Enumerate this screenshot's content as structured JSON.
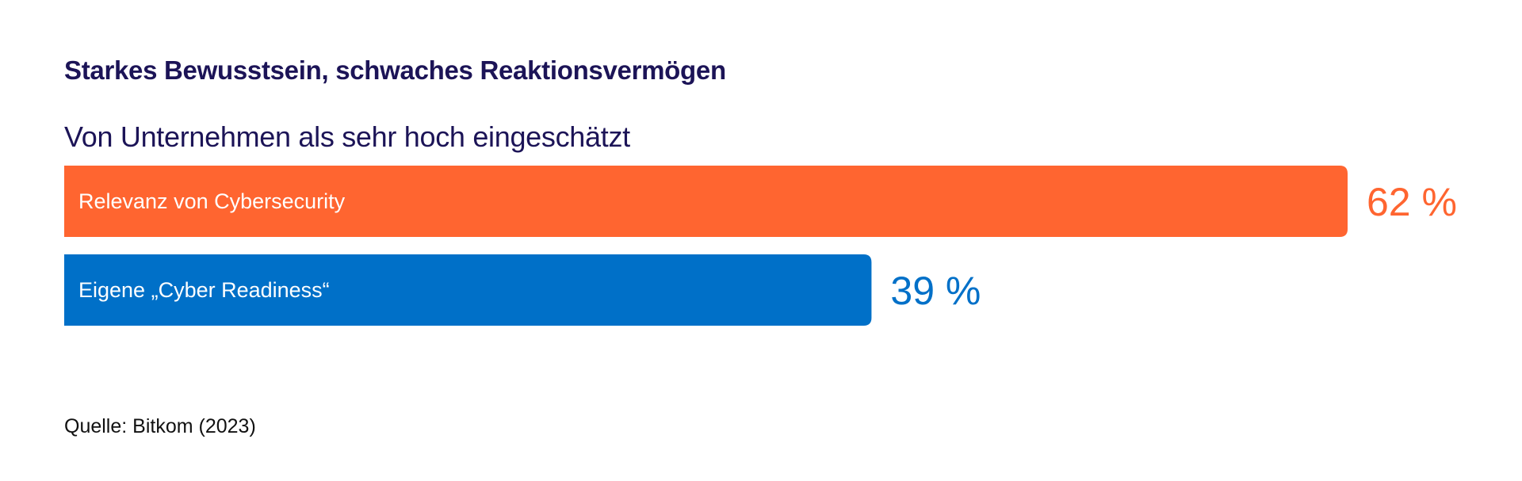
{
  "chart_data": {
    "type": "bar",
    "orientation": "horizontal",
    "title": "Starkes Bewusstsein, schwaches Reaktionsvermögen",
    "subtitle": "Von Unternehmen als sehr hoch eingeschätzt",
    "categories": [
      "Relevanz von Cybersecurity",
      "Eigene „Cyber Readiness“"
    ],
    "values": [
      62,
      39
    ],
    "value_labels": [
      "62 %",
      "39 %"
    ],
    "colors": [
      "#ff6530",
      "#0070c8"
    ],
    "xlim": [
      0,
      100
    ],
    "grid": false,
    "source": "Quelle: Bitkom (2023)"
  }
}
